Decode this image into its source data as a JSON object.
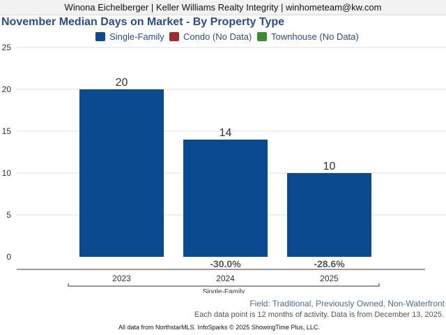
{
  "header": {
    "text": "Winona Eichelberger | Keller Williams Realty Integrity | winhometeam@kw.com"
  },
  "colors": {
    "single_family": "#0a4a8e",
    "condo": "#a6282e",
    "townhouse": "#3d8a35",
    "grid": "#dddddd",
    "axis": "#333333"
  },
  "chart_data": {
    "type": "bar",
    "title": "November Median Days on Market - By Property Type",
    "categories": [
      "2023",
      "2024",
      "2025"
    ],
    "group_label": "Single-Family",
    "series": [
      {
        "name": "Single-Family",
        "values": [
          20,
          14,
          10
        ]
      }
    ],
    "legend": [
      {
        "name": "Single-Family",
        "color": "#0a4a8e"
      },
      {
        "name": "Condo (No Data)",
        "color": "#a6282e"
      },
      {
        "name": "Townhouse (No Data)",
        "color": "#3d8a35"
      }
    ],
    "data_labels": [
      "20",
      "14",
      "10"
    ],
    "change_labels": [
      "",
      "-30.0%",
      "-28.6%"
    ],
    "ylim": [
      0,
      25
    ],
    "yticks": [
      0,
      5,
      10,
      15,
      20,
      25
    ],
    "grid": true,
    "legend_position": "top"
  },
  "footer": {
    "field": "Field: Traditional, Previously Owned, Non-Waterfront",
    "data_note": "Each data point is 12 months of activity. Data is from December 13, 2025.",
    "source": "All data from NorthstarMLS. InfoSparks © 2025 ShowingTime Plus, LLC."
  }
}
